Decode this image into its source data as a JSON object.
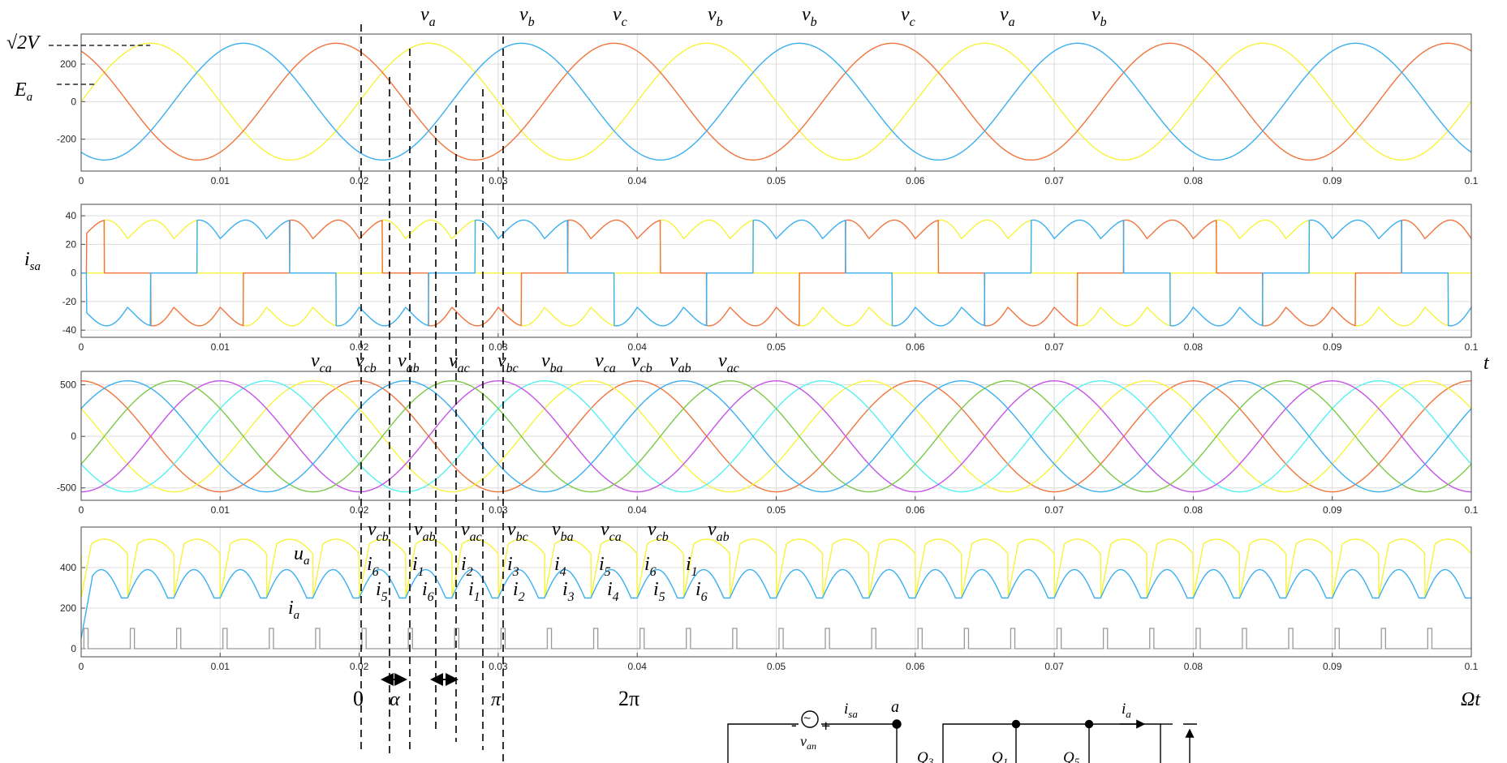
{
  "figure": {
    "x_ticks": [
      "0",
      "0.01",
      "0.02",
      "0.03",
      "0.04",
      "0.05",
      "0.06",
      "0.07",
      "0.08",
      "0.09",
      "0.1"
    ],
    "colors": {
      "series_orange": "#f0743c",
      "series_yellow": "#f7f23a",
      "series_blue": "#3aaff0",
      "series_cyan": "#55f0f0",
      "series_purple": "#c453e6",
      "series_green": "#7cc947",
      "series_gray": "#9a9a9a",
      "grid": "#dcdcdc",
      "axes": "#4a4a4a"
    },
    "panels": [
      {
        "id": "phase-voltages",
        "y_ticks": [
          "200",
          "0",
          "-200"
        ],
        "left_labels": [
          {
            "main": "√2V",
            "sub": ""
          },
          {
            "main": "E",
            "sub": "a"
          }
        ],
        "top_labels": [
          {
            "main": "v",
            "sub": "a"
          },
          {
            "main": "v",
            "sub": "b"
          },
          {
            "main": "v",
            "sub": "c"
          },
          {
            "main": "v",
            "sub": "b"
          },
          {
            "main": "v",
            "sub": "b"
          },
          {
            "main": "v",
            "sub": "c"
          },
          {
            "main": "v",
            "sub": "a"
          },
          {
            "main": "v",
            "sub": "b"
          }
        ]
      },
      {
        "id": "source-currents",
        "y_ticks": [
          "40",
          "20",
          "0",
          "-20",
          "-40"
        ],
        "left_labels": [
          {
            "main": "i",
            "sub": "sa"
          }
        ],
        "right_label": "t"
      },
      {
        "id": "line-voltages",
        "y_ticks": [
          "500",
          "0",
          "-500"
        ],
        "top_labels": [
          {
            "main": "v",
            "sub": "ca"
          },
          {
            "main": "v",
            "sub": "cb"
          },
          {
            "main": "v",
            "sub": "ab"
          },
          {
            "main": "v",
            "sub": "ac"
          },
          {
            "main": "v",
            "sub": "bc"
          },
          {
            "main": "v",
            "sub": "ba"
          },
          {
            "main": "v",
            "sub": "ca"
          },
          {
            "main": "v",
            "sub": "cb"
          },
          {
            "main": "v",
            "sub": "ab"
          },
          {
            "main": "v",
            "sub": "ac"
          }
        ]
      },
      {
        "id": "dc-output",
        "y_ticks": [
          "400",
          "200",
          "0"
        ],
        "left_labels": [
          {
            "main": "u",
            "sub": "a"
          },
          {
            "main": "i",
            "sub": "a"
          }
        ],
        "top_labels": [
          {
            "main": "v",
            "sub": "cb"
          },
          {
            "main": "v",
            "sub": "ab"
          },
          {
            "main": "v",
            "sub": "ac"
          },
          {
            "main": "v",
            "sub": "bc"
          },
          {
            "main": "v",
            "sub": "ba"
          },
          {
            "main": "v",
            "sub": "ca"
          },
          {
            "main": "v",
            "sub": "cb"
          },
          {
            "main": "v",
            "sub": "ab"
          }
        ],
        "upper_currents": [
          "6",
          "1",
          "2",
          "3",
          "4",
          "5",
          "6",
          "1"
        ],
        "lower_currents": [
          "5",
          "6",
          "1",
          "2",
          "3",
          "4",
          "5",
          "6"
        ]
      }
    ],
    "bottom_labels": {
      "zero": "0",
      "alpha": "α",
      "pi": "π",
      "two_pi": "2π",
      "omega_t": "Ωt"
    },
    "circuit": {
      "source_minus": "-",
      "source_plus": "+",
      "source_symbol": "~",
      "source_label": {
        "main": "v",
        "sub": "an"
      },
      "input_current": {
        "main": "i",
        "sub": "sa"
      },
      "node_label": "a",
      "output_current": {
        "main": "i",
        "sub": "a"
      },
      "switches": [
        {
          "main": "Q",
          "sub": "3"
        },
        {
          "main": "Q",
          "sub": "1"
        },
        {
          "main": "Q",
          "sub": "5"
        }
      ]
    }
  }
}
